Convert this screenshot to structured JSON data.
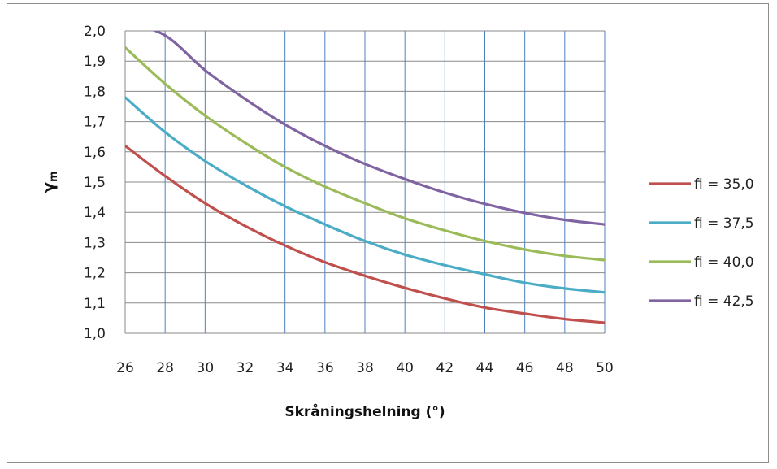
{
  "chart_data": {
    "type": "line",
    "title": "",
    "xlabel": "Skråningshelning (°)",
    "ylabel": "γm",
    "ylabel_main": "γ",
    "ylabel_sub": "m",
    "xlim": [
      26,
      50
    ],
    "ylim": [
      1.0,
      2.0
    ],
    "x_ticks": [
      "26",
      "28",
      "30",
      "32",
      "34",
      "36",
      "38",
      "40",
      "42",
      "44",
      "46",
      "48",
      "50"
    ],
    "y_ticks": [
      "1,0",
      "1,1",
      "1,2",
      "1,3",
      "1,4",
      "1,5",
      "1,6",
      "1,7",
      "1,8",
      "1,9",
      "2,0"
    ],
    "grid": true,
    "legend_position": "right",
    "x": [
      26,
      28,
      30,
      32,
      34,
      36,
      38,
      40,
      42,
      44,
      46,
      48,
      50
    ],
    "series": [
      {
        "name": "fi = 35,0",
        "color": "#c0504d",
        "values": [
          1.62,
          1.52,
          1.43,
          1.355,
          1.29,
          1.235,
          1.19,
          1.15,
          1.115,
          1.085,
          1.065,
          1.047,
          1.035
        ]
      },
      {
        "name": "fi = 37,5",
        "color": "#4bacc6",
        "values": [
          1.78,
          1.665,
          1.57,
          1.49,
          1.42,
          1.36,
          1.305,
          1.26,
          1.225,
          1.195,
          1.167,
          1.148,
          1.135
        ]
      },
      {
        "name": "fi = 40,0",
        "color": "#9bbb59",
        "values": [
          1.945,
          1.825,
          1.72,
          1.63,
          1.55,
          1.485,
          1.43,
          1.38,
          1.34,
          1.305,
          1.277,
          1.256,
          1.242
        ]
      },
      {
        "name": "fi = 42,5",
        "color": "#8064a2",
        "values": [
          2.03,
          1.985,
          1.87,
          1.775,
          1.69,
          1.62,
          1.56,
          1.51,
          1.465,
          1.428,
          1.398,
          1.375,
          1.36
        ]
      }
    ]
  }
}
